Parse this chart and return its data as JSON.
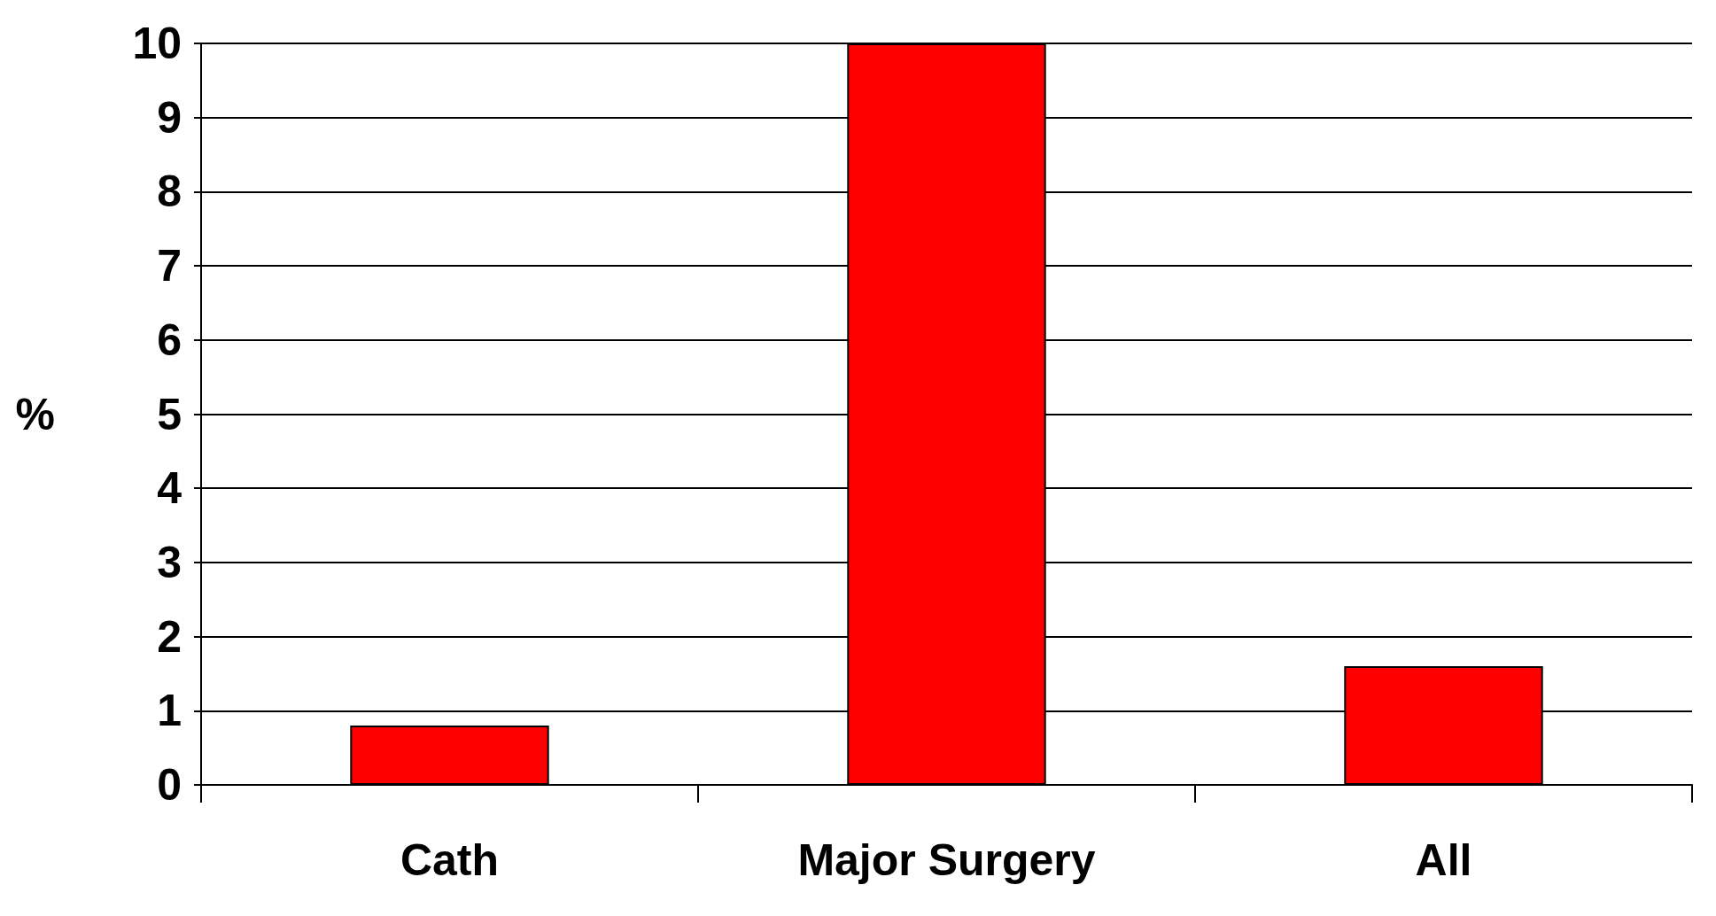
{
  "chart_data": {
    "type": "bar",
    "ylabel": "%",
    "categories": [
      "Cath",
      "Major Surgery",
      "All"
    ],
    "values": [
      0.8,
      10,
      1.6
    ],
    "color": "#ff0000",
    "ylim": [
      0,
      10
    ],
    "yticks": [
      0,
      1,
      2,
      3,
      4,
      5,
      6,
      7,
      8,
      9,
      10
    ],
    "grid": "y"
  }
}
